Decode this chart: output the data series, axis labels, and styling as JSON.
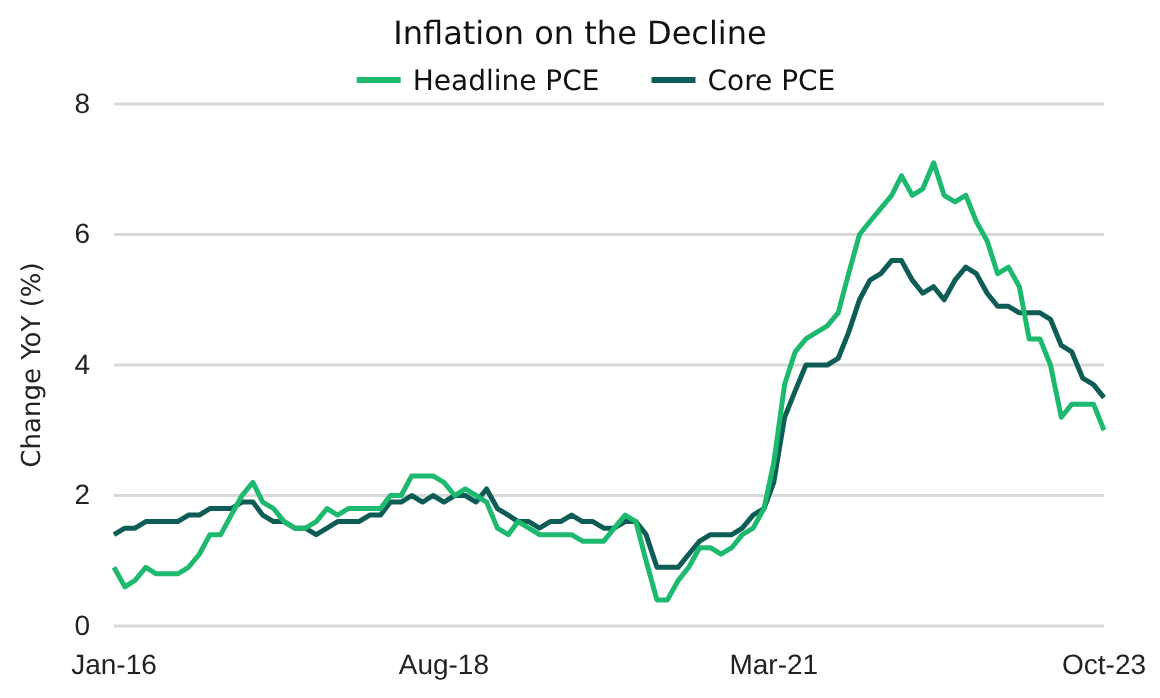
{
  "chart_data": {
    "type": "line",
    "title": "Inflation on the Decline",
    "ylabel": "Change YoY (%)",
    "x": [
      "2016-01",
      "2016-02",
      "2016-03",
      "2016-04",
      "2016-05",
      "2016-06",
      "2016-07",
      "2016-08",
      "2016-09",
      "2016-10",
      "2016-11",
      "2016-12",
      "2017-01",
      "2017-02",
      "2017-03",
      "2017-04",
      "2017-05",
      "2017-06",
      "2017-07",
      "2017-08",
      "2017-09",
      "2017-10",
      "2017-11",
      "2017-12",
      "2018-01",
      "2018-02",
      "2018-03",
      "2018-04",
      "2018-05",
      "2018-06",
      "2018-07",
      "2018-08",
      "2018-09",
      "2018-10",
      "2018-11",
      "2018-12",
      "2019-01",
      "2019-02",
      "2019-03",
      "2019-04",
      "2019-05",
      "2019-06",
      "2019-07",
      "2019-08",
      "2019-09",
      "2019-10",
      "2019-11",
      "2019-12",
      "2020-01",
      "2020-02",
      "2020-03",
      "2020-04",
      "2020-05",
      "2020-06",
      "2020-07",
      "2020-08",
      "2020-09",
      "2020-10",
      "2020-11",
      "2020-12",
      "2021-01",
      "2021-02",
      "2021-03",
      "2021-04",
      "2021-05",
      "2021-06",
      "2021-07",
      "2021-08",
      "2021-09",
      "2021-10",
      "2021-11",
      "2021-12",
      "2022-01",
      "2022-02",
      "2022-03",
      "2022-04",
      "2022-05",
      "2022-06",
      "2022-07",
      "2022-08",
      "2022-09",
      "2022-10",
      "2022-11",
      "2022-12",
      "2023-01",
      "2023-02",
      "2023-03",
      "2023-04",
      "2023-05",
      "2023-06",
      "2023-07",
      "2023-08",
      "2023-09",
      "2023-10"
    ],
    "series": [
      {
        "name": "Headline PCE",
        "color": "#1db96e",
        "values": [
          0.9,
          0.6,
          0.7,
          0.9,
          0.8,
          0.8,
          0.8,
          0.9,
          1.1,
          1.4,
          1.4,
          1.7,
          2.0,
          2.2,
          1.9,
          1.8,
          1.6,
          1.5,
          1.5,
          1.6,
          1.8,
          1.7,
          1.8,
          1.8,
          1.8,
          1.8,
          2.0,
          2.0,
          2.3,
          2.3,
          2.3,
          2.2,
          2.0,
          2.1,
          2.0,
          1.9,
          1.5,
          1.4,
          1.6,
          1.5,
          1.4,
          1.4,
          1.4,
          1.4,
          1.3,
          1.3,
          1.3,
          1.5,
          1.7,
          1.6,
          1.0,
          0.4,
          0.4,
          0.7,
          0.9,
          1.2,
          1.2,
          1.1,
          1.2,
          1.4,
          1.5,
          1.8,
          2.5,
          3.7,
          4.2,
          4.4,
          4.5,
          4.6,
          4.8,
          5.4,
          6.0,
          6.2,
          6.4,
          6.6,
          6.9,
          6.6,
          6.7,
          7.1,
          6.6,
          6.5,
          6.6,
          6.2,
          5.9,
          5.4,
          5.5,
          5.2,
          4.4,
          4.4,
          4.0,
          3.2,
          3.4,
          3.4,
          3.4,
          3.0
        ]
      },
      {
        "name": "Core PCE",
        "color": "#0d5c55",
        "values": [
          1.4,
          1.5,
          1.5,
          1.6,
          1.6,
          1.6,
          1.6,
          1.7,
          1.7,
          1.8,
          1.8,
          1.8,
          1.9,
          1.9,
          1.7,
          1.6,
          1.6,
          1.5,
          1.5,
          1.4,
          1.5,
          1.6,
          1.6,
          1.6,
          1.7,
          1.7,
          1.9,
          1.9,
          2.0,
          1.9,
          2.0,
          1.9,
          2.0,
          2.0,
          1.9,
          2.1,
          1.8,
          1.7,
          1.6,
          1.6,
          1.5,
          1.6,
          1.6,
          1.7,
          1.6,
          1.6,
          1.5,
          1.5,
          1.6,
          1.6,
          1.4,
          0.9,
          0.9,
          0.9,
          1.1,
          1.3,
          1.4,
          1.4,
          1.4,
          1.5,
          1.7,
          1.8,
          2.2,
          3.2,
          3.6,
          4.0,
          4.0,
          4.0,
          4.1,
          4.5,
          5.0,
          5.3,
          5.4,
          5.6,
          5.6,
          5.3,
          5.1,
          5.2,
          5.0,
          5.3,
          5.5,
          5.4,
          5.1,
          4.9,
          4.9,
          4.8,
          4.8,
          4.8,
          4.7,
          4.3,
          4.2,
          3.8,
          3.7,
          3.5
        ]
      }
    ],
    "xlim": [
      "2016-01",
      "2023-10"
    ],
    "xticks": [
      {
        "value": "2016-01",
        "label": "Jan-16"
      },
      {
        "value": "2018-08",
        "label": "Aug-18"
      },
      {
        "value": "2021-03",
        "label": "Mar-21"
      },
      {
        "value": "2023-10",
        "label": "Oct-23"
      }
    ],
    "ylim": [
      0,
      8
    ],
    "yticks": [
      0,
      2,
      4,
      6,
      8
    ],
    "grid": "y",
    "legend": "top",
    "marker": "none",
    "line_style": "solid"
  }
}
